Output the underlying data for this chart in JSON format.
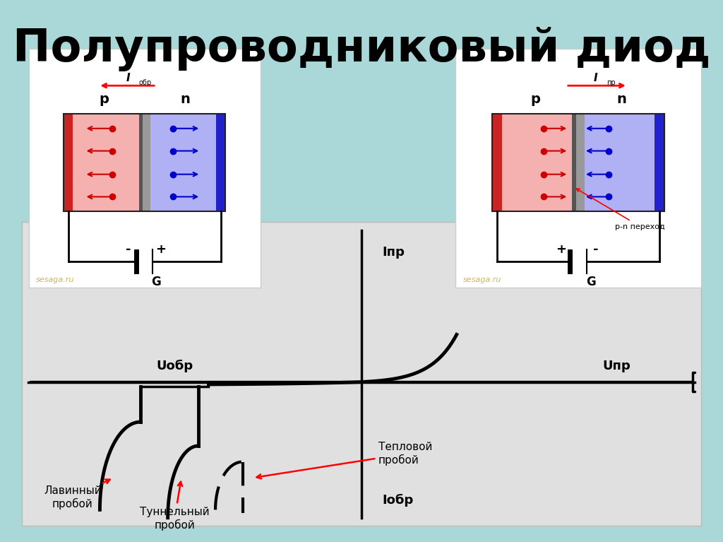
{
  "title": "Полупроводниковый диод",
  "bg_color": "#aad8d8",
  "panel_color": "#e8e8e8",
  "title_fontsize": 46,
  "left_diagram": {
    "label_p": "p",
    "label_n": "n",
    "current_sub": "обр",
    "current_direction": "left",
    "p_color": "#f5b0b0",
    "n_color": "#b0b0f5",
    "p_border_color": "#cc2222",
    "n_border_color": "#2222cc",
    "junction_color": "#888888",
    "dot_color_p": "#cc0000",
    "dot_color_n": "#0000cc",
    "battery_minus": "-",
    "battery_plus": "+",
    "battery_label": "G",
    "watermark": "sesaga.ru"
  },
  "right_diagram": {
    "label_p": "p",
    "label_n": "n",
    "current_sub": "пр",
    "current_direction": "right",
    "p_color": "#f5b0b0",
    "n_color": "#b0b0f5",
    "p_border_color": "#cc2222",
    "n_border_color": "#2222cc",
    "dot_color_p": "#cc0000",
    "dot_color_n": "#0000cc",
    "battery_minus": "-",
    "battery_plus": "+",
    "battery_label": "G",
    "pn_label": "p-n переход",
    "watermark": "sesaga.ru"
  },
  "graph": {
    "axis_label_Ipr": "Iпр",
    "axis_label_Iobr": "Iобр",
    "axis_label_Uobr": "Uобр",
    "axis_label_Upr": "Uпр",
    "label_lavinny": "Лавинный\nпробой",
    "label_tunnelny": "Туннельный\nпробой",
    "label_teplovoy": "Тепловой\nпробой"
  }
}
